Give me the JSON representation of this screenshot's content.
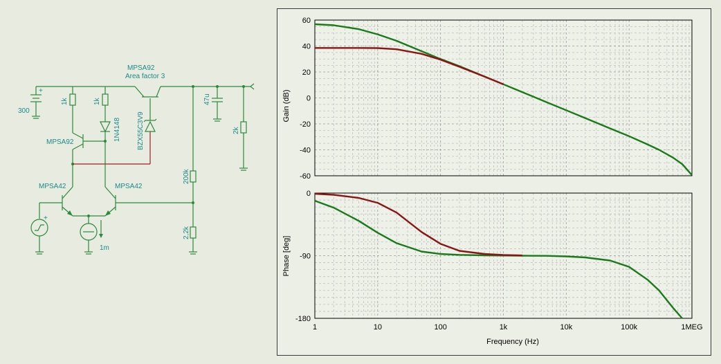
{
  "schematic": {
    "battery_value": "300",
    "r1_value": "1k",
    "r2_value": "1k",
    "diode_name": "1N4148",
    "zener_name": "BZX55C3V9",
    "q_top_left": "MPSA92",
    "q_top_right": "MPSA92",
    "q_top_right_note": "Area factor 3",
    "q_bottom_left": "MPSA42",
    "q_bottom_right": "MPSA42",
    "current_source_value": "1m",
    "cap_value": "47u",
    "r_load_value": "2k",
    "r_fb_top_value": "200k",
    "r_fb_bottom_value": "2,2k"
  },
  "chart_data": [
    {
      "type": "line",
      "ylabel": "Gain (dB)",
      "xlabel": "",
      "xscale": "log",
      "xlim": [
        1,
        1000000
      ],
      "ylim": [
        -60,
        60
      ],
      "yticks": [
        60,
        40,
        20,
        0,
        -20,
        -40,
        -60
      ],
      "grid": true,
      "series": [
        {
          "color": "#1a7a1a",
          "x": [
            1,
            2,
            5,
            10,
            20,
            50,
            100,
            200,
            500,
            1000,
            2000,
            5000,
            10000,
            20000,
            50000,
            100000,
            200000,
            300000,
            500000,
            700000,
            1000000
          ],
          "y": [
            56.8,
            56,
            53,
            49,
            44,
            36,
            30,
            24.5,
            16.5,
            10.5,
            4.5,
            -3.5,
            -9.5,
            -15.5,
            -23.5,
            -29.5,
            -36,
            -40,
            -46,
            -51,
            -59.5
          ]
        },
        {
          "color": "#8a1515",
          "x": [
            1,
            2,
            5,
            10,
            20,
            50,
            100,
            200,
            500,
            1000
          ],
          "y": [
            38.5,
            38.5,
            38.5,
            38.4,
            37.5,
            34,
            29.5,
            24,
            16.5,
            10.5
          ]
        }
      ]
    },
    {
      "type": "line",
      "ylabel": "Phase [deg]",
      "xlabel": "Frequency (Hz)",
      "xscale": "log",
      "xlim": [
        1,
        1000000
      ],
      "ylim": [
        -180,
        0
      ],
      "yticks": [
        0,
        -90,
        -180
      ],
      "xticks": [
        "1",
        "10",
        "100",
        "1k",
        "10k",
        "100k",
        "1MEG"
      ],
      "grid": true,
      "series": [
        {
          "color": "#1a7a1a",
          "x": [
            1,
            2,
            5,
            10,
            20,
            50,
            100,
            200,
            500,
            1000,
            2000,
            5000,
            10000,
            20000,
            50000,
            100000,
            200000,
            300000,
            500000,
            700000
          ],
          "y": [
            -11,
            -21,
            -40,
            -57,
            -72,
            -84,
            -87.5,
            -88.8,
            -89.5,
            -89.8,
            -90,
            -90.2,
            -91,
            -92.5,
            -97,
            -106,
            -125,
            -140,
            -165,
            -180
          ]
        },
        {
          "color": "#8a1515",
          "x": [
            1,
            2,
            5,
            10,
            20,
            50,
            100,
            200,
            500,
            1000,
            2000
          ],
          "y": [
            -1,
            -2.5,
            -7,
            -14,
            -28,
            -56,
            -73,
            -83,
            -87.5,
            -89,
            -89.6
          ]
        }
      ]
    }
  ]
}
